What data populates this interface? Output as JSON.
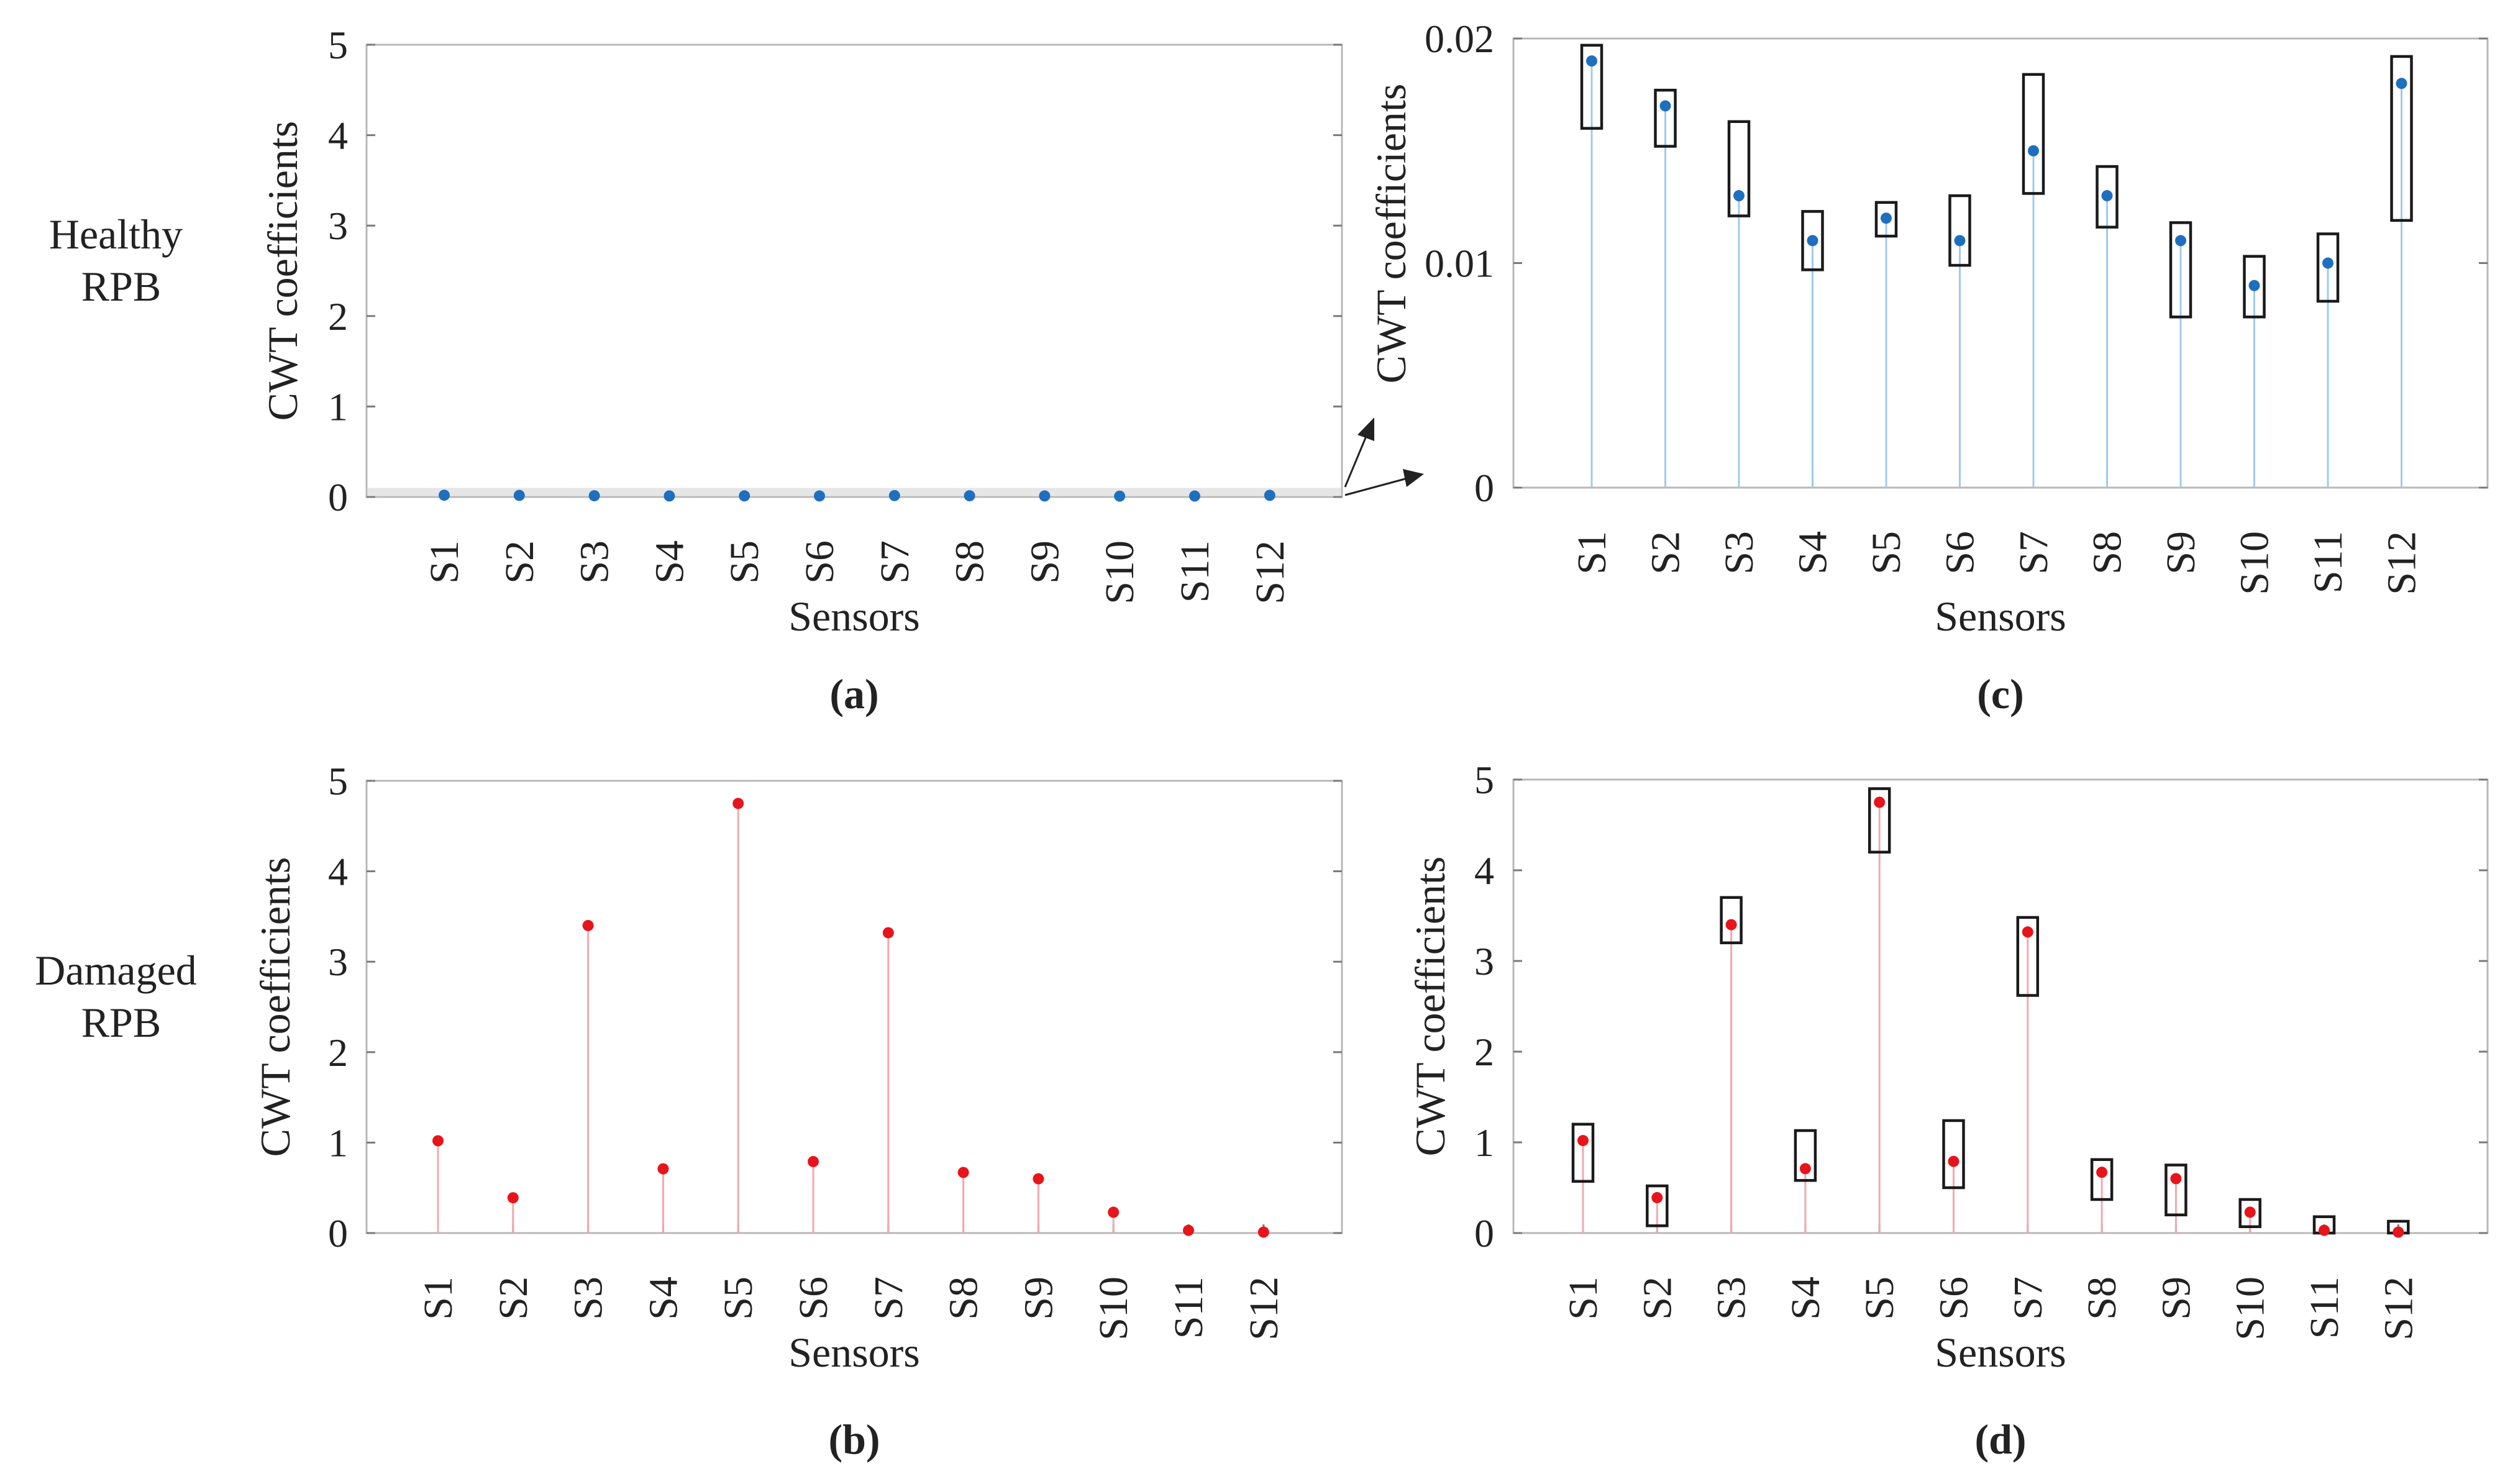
{
  "row_labels": [
    {
      "lines": [
        "Healthy",
        "RPB"
      ]
    },
    {
      "lines": [
        "Damaged",
        "RPB"
      ]
    }
  ],
  "chart_data": [
    {
      "id": "a",
      "type": "scatter",
      "caption": "(a)",
      "xlabel": "Sensors",
      "ylabel": "CWT coefficients",
      "categories": [
        "S1",
        "S2",
        "S3",
        "S4",
        "S5",
        "S6",
        "S7",
        "S8",
        "S9",
        "S10",
        "S11",
        "S12"
      ],
      "ylim": [
        0,
        5
      ],
      "yticks": [
        0,
        1,
        2,
        3,
        4,
        5
      ],
      "ytick_labels": [
        "0",
        "1",
        "2",
        "3",
        "4",
        "5"
      ],
      "grid": false,
      "marker_color": "#1f6fbf",
      "stem_color": "#9fcbe8",
      "zoom_band": [
        0,
        0.1
      ],
      "series": [
        {
          "values": [
            0.019,
            0.017,
            0.013,
            0.011,
            0.012,
            0.011,
            0.015,
            0.013,
            0.011,
            0.009,
            0.01,
            0.018
          ]
        }
      ]
    },
    {
      "id": "b",
      "type": "scatter",
      "caption": "(b)",
      "xlabel": "Sensors",
      "ylabel": "CWT coefficients",
      "categories": [
        "S1",
        "S2",
        "S3",
        "S4",
        "S5",
        "S6",
        "S7",
        "S8",
        "S9",
        "S10",
        "S11",
        "S12"
      ],
      "ylim": [
        0,
        5
      ],
      "yticks": [
        0,
        1,
        2,
        3,
        4,
        5
      ],
      "ytick_labels": [
        "0",
        "1",
        "2",
        "3",
        "4",
        "5"
      ],
      "grid": false,
      "marker_color": "#e8141b",
      "stem_color": "#f3a7ad",
      "series": [
        {
          "values": [
            1.02,
            0.39,
            3.4,
            0.71,
            4.75,
            0.79,
            3.32,
            0.67,
            0.6,
            0.23,
            0.03,
            0.01
          ]
        }
      ]
    },
    {
      "id": "c",
      "type": "scatter",
      "caption": "(c)",
      "xlabel": "Sensors",
      "ylabel": "CWT coefficients",
      "categories": [
        "S1",
        "S2",
        "S3",
        "S4",
        "S5",
        "S6",
        "S7",
        "S8",
        "S9",
        "S10",
        "S11",
        "S12"
      ],
      "ylim": [
        0,
        0.02
      ],
      "yticks": [
        0,
        0.01,
        0.02
      ],
      "ytick_labels": [
        "0",
        "0.01",
        "0.02"
      ],
      "grid": false,
      "marker_color": "#1f6fbf",
      "stem_color": "#9fcbe8",
      "series": [
        {
          "values": [
            0.019,
            0.017,
            0.013,
            0.011,
            0.012,
            0.011,
            0.015,
            0.013,
            0.011,
            0.009,
            0.01,
            0.018
          ],
          "box_low": [
            0.016,
            0.0152,
            0.0121,
            0.0097,
            0.0112,
            0.0099,
            0.0131,
            0.0116,
            0.0076,
            0.0076,
            0.0083,
            0.0119
          ],
          "box_high": [
            0.0197,
            0.0177,
            0.0163,
            0.0123,
            0.0127,
            0.013,
            0.0184,
            0.0143,
            0.0118,
            0.0103,
            0.0113,
            0.0192
          ]
        }
      ]
    },
    {
      "id": "d",
      "type": "scatter",
      "caption": "(d)",
      "xlabel": "Sensors",
      "ylabel": "CWT coefficients",
      "categories": [
        "S1",
        "S2",
        "S3",
        "S4",
        "S5",
        "S6",
        "S7",
        "S8",
        "S9",
        "S10",
        "S11",
        "S12"
      ],
      "ylim": [
        0,
        5
      ],
      "yticks": [
        0,
        1,
        2,
        3,
        4,
        5
      ],
      "ytick_labels": [
        "0",
        "1",
        "2",
        "3",
        "4",
        "5"
      ],
      "grid": false,
      "marker_color": "#e8141b",
      "stem_color": "#f3a7ad",
      "series": [
        {
          "values": [
            1.02,
            0.39,
            3.4,
            0.71,
            4.75,
            0.79,
            3.32,
            0.67,
            0.6,
            0.23,
            0.03,
            0.01
          ],
          "box_low": [
            0.57,
            0.08,
            3.2,
            0.58,
            4.2,
            0.5,
            2.62,
            0.37,
            0.2,
            0.07,
            0.0,
            0.0
          ],
          "box_high": [
            1.2,
            0.52,
            3.7,
            1.13,
            4.9,
            1.24,
            3.48,
            0.81,
            0.75,
            0.37,
            0.18,
            0.13
          ]
        }
      ]
    }
  ]
}
